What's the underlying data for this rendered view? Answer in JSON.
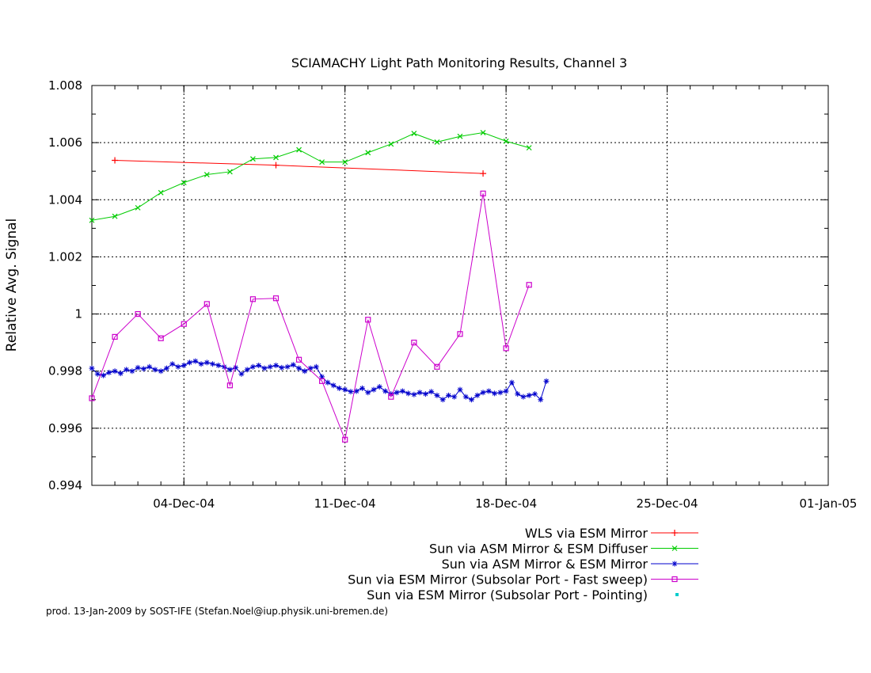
{
  "chart_data": {
    "type": "line",
    "title": "SCIAMACHY Light Path Monitoring Results, Channel 3",
    "xlabel": "",
    "ylabel": "Relative Avg. Signal",
    "xlim": [
      "2004-11-30",
      "2005-01-01"
    ],
    "ylim": [
      0.994,
      1.008
    ],
    "x_ticks": [
      {
        "date": "2004-12-04",
        "label": "04-Dec-04"
      },
      {
        "date": "2004-12-11",
        "label": "11-Dec-04"
      },
      {
        "date": "2004-12-18",
        "label": "18-Dec-04"
      },
      {
        "date": "2004-12-25",
        "label": "25-Dec-04"
      },
      {
        "date": "2005-01-01",
        "label": "01-Jan-05"
      }
    ],
    "y_ticks": [
      {
        "value": 0.994,
        "label": "0.994"
      },
      {
        "value": 0.996,
        "label": "0.996"
      },
      {
        "value": 0.998,
        "label": "0.998"
      },
      {
        "value": 1.0,
        "label": "1"
      },
      {
        "value": 1.002,
        "label": "1.002"
      },
      {
        "value": 1.004,
        "label": "1.004"
      },
      {
        "value": 1.006,
        "label": "1.006"
      },
      {
        "value": 1.008,
        "label": "1.008"
      }
    ],
    "grid": true,
    "legend_position": "bottom-right",
    "footer": "prod. 13-Jan-2009 by SOST-IFE (Stefan.Noel@iup.physik.uni-bremen.de)",
    "series": [
      {
        "name": "WLS via ESM Mirror",
        "color": "#ff0000",
        "marker": "plus",
        "points": [
          {
            "x": "2004-12-01 00:00",
            "y": 1.00538
          },
          {
            "x": "2004-12-08 00:00",
            "y": 1.00521
          },
          {
            "x": "2004-12-17 00:00",
            "y": 1.00492
          }
        ]
      },
      {
        "name": "Sun via ASM Mirror & ESM Diffuser",
        "color": "#00cc00",
        "marker": "cross",
        "points": [
          {
            "x": "2004-11-30 00:00",
            "y": 1.00328
          },
          {
            "x": "2004-12-01 00:00",
            "y": 1.00342
          },
          {
            "x": "2004-12-02 00:00",
            "y": 1.00372
          },
          {
            "x": "2004-12-03 00:00",
            "y": 1.00425
          },
          {
            "x": "2004-12-04 00:00",
            "y": 1.0046
          },
          {
            "x": "2004-12-05 00:00",
            "y": 1.00488
          },
          {
            "x": "2004-12-06 00:00",
            "y": 1.00498
          },
          {
            "x": "2004-12-07 00:00",
            "y": 1.00543
          },
          {
            "x": "2004-12-08 00:00",
            "y": 1.00548
          },
          {
            "x": "2004-12-09 00:00",
            "y": 1.00575
          },
          {
            "x": "2004-12-10 00:00",
            "y": 1.00532
          },
          {
            "x": "2004-12-11 00:00",
            "y": 1.00532
          },
          {
            "x": "2004-12-12 00:00",
            "y": 1.00565
          },
          {
            "x": "2004-12-13 00:00",
            "y": 1.00595
          },
          {
            "x": "2004-12-14 00:00",
            "y": 1.00632
          },
          {
            "x": "2004-12-15 00:00",
            "y": 1.00602
          },
          {
            "x": "2004-12-16 00:00",
            "y": 1.00622
          },
          {
            "x": "2004-12-17 00:00",
            "y": 1.00635
          },
          {
            "x": "2004-12-18 00:00",
            "y": 1.00605
          },
          {
            "x": "2004-12-19 00:00",
            "y": 1.00582
          }
        ]
      },
      {
        "name": "Sun via ASM Mirror & ESM Mirror",
        "color": "#0000cc",
        "marker": "star",
        "points": [
          {
            "x": "2004-11-30 00:00",
            "y": 0.9981
          },
          {
            "x": "2004-11-30 06:00",
            "y": 0.9979
          },
          {
            "x": "2004-11-30 12:00",
            "y": 0.99785
          },
          {
            "x": "2004-11-30 18:00",
            "y": 0.99795
          },
          {
            "x": "2004-12-01 00:00",
            "y": 0.998
          },
          {
            "x": "2004-12-01 06:00",
            "y": 0.99792
          },
          {
            "x": "2004-12-01 12:00",
            "y": 0.99805
          },
          {
            "x": "2004-12-01 18:00",
            "y": 0.998
          },
          {
            "x": "2004-12-02 00:00",
            "y": 0.99812
          },
          {
            "x": "2004-12-02 06:00",
            "y": 0.99808
          },
          {
            "x": "2004-12-02 12:00",
            "y": 0.99815
          },
          {
            "x": "2004-12-02 18:00",
            "y": 0.99805
          },
          {
            "x": "2004-12-03 00:00",
            "y": 0.998
          },
          {
            "x": "2004-12-03 06:00",
            "y": 0.9981
          },
          {
            "x": "2004-12-03 12:00",
            "y": 0.99825
          },
          {
            "x": "2004-12-03 18:00",
            "y": 0.99815
          },
          {
            "x": "2004-12-04 00:00",
            "y": 0.9982
          },
          {
            "x": "2004-12-04 06:00",
            "y": 0.9983
          },
          {
            "x": "2004-12-04 12:00",
            "y": 0.99835
          },
          {
            "x": "2004-12-04 18:00",
            "y": 0.99825
          },
          {
            "x": "2004-12-05 00:00",
            "y": 0.9983
          },
          {
            "x": "2004-12-05 06:00",
            "y": 0.99825
          },
          {
            "x": "2004-12-05 12:00",
            "y": 0.9982
          },
          {
            "x": "2004-12-05 18:00",
            "y": 0.99815
          },
          {
            "x": "2004-12-06 00:00",
            "y": 0.99805
          },
          {
            "x": "2004-12-06 06:00",
            "y": 0.99812
          },
          {
            "x": "2004-12-06 12:00",
            "y": 0.9979
          },
          {
            "x": "2004-12-06 18:00",
            "y": 0.99805
          },
          {
            "x": "2004-12-07 00:00",
            "y": 0.99815
          },
          {
            "x": "2004-12-07 06:00",
            "y": 0.9982
          },
          {
            "x": "2004-12-07 12:00",
            "y": 0.9981
          },
          {
            "x": "2004-12-07 18:00",
            "y": 0.99815
          },
          {
            "x": "2004-12-08 00:00",
            "y": 0.9982
          },
          {
            "x": "2004-12-08 06:00",
            "y": 0.99812
          },
          {
            "x": "2004-12-08 12:00",
            "y": 0.99815
          },
          {
            "x": "2004-12-08 18:00",
            "y": 0.99822
          },
          {
            "x": "2004-12-09 00:00",
            "y": 0.9981
          },
          {
            "x": "2004-12-09 06:00",
            "y": 0.998
          },
          {
            "x": "2004-12-09 12:00",
            "y": 0.9981
          },
          {
            "x": "2004-12-09 18:00",
            "y": 0.99815
          },
          {
            "x": "2004-12-10 00:00",
            "y": 0.9978
          },
          {
            "x": "2004-12-10 06:00",
            "y": 0.9976
          },
          {
            "x": "2004-12-10 12:00",
            "y": 0.9975
          },
          {
            "x": "2004-12-10 18:00",
            "y": 0.9974
          },
          {
            "x": "2004-12-11 00:00",
            "y": 0.99735
          },
          {
            "x": "2004-12-11 06:00",
            "y": 0.99728
          },
          {
            "x": "2004-12-11 12:00",
            "y": 0.9973
          },
          {
            "x": "2004-12-11 18:00",
            "y": 0.9974
          },
          {
            "x": "2004-12-12 00:00",
            "y": 0.99725
          },
          {
            "x": "2004-12-12 06:00",
            "y": 0.99735
          },
          {
            "x": "2004-12-12 12:00",
            "y": 0.99745
          },
          {
            "x": "2004-12-12 18:00",
            "y": 0.9973
          },
          {
            "x": "2004-12-13 00:00",
            "y": 0.9972
          },
          {
            "x": "2004-12-13 06:00",
            "y": 0.99725
          },
          {
            "x": "2004-12-13 12:00",
            "y": 0.9973
          },
          {
            "x": "2004-12-13 18:00",
            "y": 0.99722
          },
          {
            "x": "2004-12-14 00:00",
            "y": 0.99718
          },
          {
            "x": "2004-12-14 06:00",
            "y": 0.99725
          },
          {
            "x": "2004-12-14 12:00",
            "y": 0.9972
          },
          {
            "x": "2004-12-14 18:00",
            "y": 0.99728
          },
          {
            "x": "2004-12-15 00:00",
            "y": 0.99715
          },
          {
            "x": "2004-12-15 06:00",
            "y": 0.997
          },
          {
            "x": "2004-12-15 12:00",
            "y": 0.99715
          },
          {
            "x": "2004-12-15 18:00",
            "y": 0.9971
          },
          {
            "x": "2004-12-16 00:00",
            "y": 0.99735
          },
          {
            "x": "2004-12-16 06:00",
            "y": 0.9971
          },
          {
            "x": "2004-12-16 12:00",
            "y": 0.997
          },
          {
            "x": "2004-12-16 18:00",
            "y": 0.99715
          },
          {
            "x": "2004-12-17 00:00",
            "y": 0.99725
          },
          {
            "x": "2004-12-17 06:00",
            "y": 0.9973
          },
          {
            "x": "2004-12-17 12:00",
            "y": 0.99722
          },
          {
            "x": "2004-12-17 18:00",
            "y": 0.99725
          },
          {
            "x": "2004-12-18 00:00",
            "y": 0.9973
          },
          {
            "x": "2004-12-18 06:00",
            "y": 0.9976
          },
          {
            "x": "2004-12-18 12:00",
            "y": 0.9972
          },
          {
            "x": "2004-12-18 18:00",
            "y": 0.9971
          },
          {
            "x": "2004-12-19 00:00",
            "y": 0.99715
          },
          {
            "x": "2004-12-19 06:00",
            "y": 0.9972
          },
          {
            "x": "2004-12-19 12:00",
            "y": 0.997
          },
          {
            "x": "2004-12-19 18:00",
            "y": 0.99765
          }
        ]
      },
      {
        "name": "Sun via ESM Mirror (Subsolar Port - Fast sweep)",
        "color": "#cc00cc",
        "marker": "square",
        "points": [
          {
            "x": "2004-11-30 00:00",
            "y": 0.99705
          },
          {
            "x": "2004-12-01 00:00",
            "y": 0.9992
          },
          {
            "x": "2004-12-02 00:00",
            "y": 1.0
          },
          {
            "x": "2004-12-03 00:00",
            "y": 0.99915
          },
          {
            "x": "2004-12-04 00:00",
            "y": 0.99965
          },
          {
            "x": "2004-12-05 00:00",
            "y": 1.00035
          },
          {
            "x": "2004-12-06 00:00",
            "y": 0.9975
          },
          {
            "x": "2004-12-07 00:00",
            "y": 1.00052
          },
          {
            "x": "2004-12-08 00:00",
            "y": 1.00055
          },
          {
            "x": "2004-12-09 00:00",
            "y": 0.9984
          },
          {
            "x": "2004-12-10 00:00",
            "y": 0.99765
          },
          {
            "x": "2004-12-11 00:00",
            "y": 0.9956
          },
          {
            "x": "2004-12-12 00:00",
            "y": 0.9998
          },
          {
            "x": "2004-12-13 00:00",
            "y": 0.9971
          },
          {
            "x": "2004-12-14 00:00",
            "y": 0.999
          },
          {
            "x": "2004-12-15 00:00",
            "y": 0.99815
          },
          {
            "x": "2004-12-16 00:00",
            "y": 0.9993
          },
          {
            "x": "2004-12-17 00:00",
            "y": 1.00422
          },
          {
            "x": "2004-12-18 00:00",
            "y": 0.9988
          },
          {
            "x": "2004-12-19 00:00",
            "y": 1.00102
          }
        ]
      },
      {
        "name": "Sun via ESM Mirror (Subsolar Port - Pointing)",
        "color": "#00cccc",
        "marker": "dot",
        "points": []
      }
    ]
  }
}
